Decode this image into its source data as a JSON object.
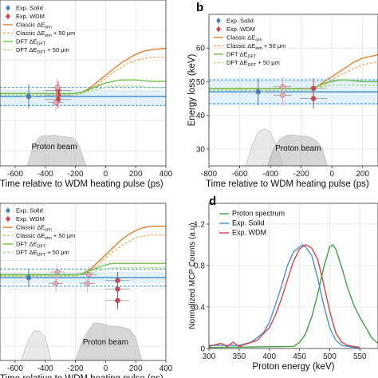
{
  "chart_data": [
    {
      "type": "line",
      "panel_label": "",
      "xlabel": "Time relative to WDM heating pulse (ps)",
      "ylabel": "",
      "xlim": [
        -700,
        400
      ],
      "ylim": [
        25,
        80
      ],
      "xticks": [
        -600,
        -400,
        -200,
        0,
        200,
        400
      ],
      "yticks": [],
      "grid": true,
      "legend_position": "top-left",
      "legend": [
        "Exp. Solid",
        "Exp. WDM",
        "Classic ΔE_sim",
        "Classic ΔE_sim + 50 μm",
        "DFT ΔE_DFT",
        "DFT ΔE_DFT + 50 μm"
      ],
      "annotation": "Proton beam",
      "series": [
        {
          "kind": "band",
          "color": "#bfe0f5",
          "y": [
            45,
            50
          ]
        },
        {
          "kind": "hline",
          "color": "#2a7fc4",
          "y": 48
        },
        {
          "kind": "hline-dashed",
          "color": "#4ca8e6",
          "y": 45
        },
        {
          "kind": "hline-dashed",
          "color": "#4ca8e6",
          "y": 51
        },
        {
          "kind": "curve",
          "color": "#e07f2a",
          "x": [
            -700,
            -200,
            -150,
            -100,
            -50,
            0,
            50,
            100,
            150,
            200,
            250,
            300,
            400
          ],
          "y": [
            49,
            49,
            49.5,
            51,
            53,
            55,
            57,
            59,
            60.5,
            62,
            63,
            63.5,
            64
          ]
        },
        {
          "kind": "curve-dashed",
          "color": "#f2ad6a",
          "x": [
            -700,
            -200,
            -150,
            -100,
            -50,
            0,
            50,
            100,
            150,
            200,
            250,
            300,
            400
          ],
          "y": [
            48.5,
            48.5,
            49,
            50.5,
            52,
            54,
            56,
            57.5,
            59,
            60,
            60.5,
            61,
            61
          ]
        },
        {
          "kind": "curve",
          "color": "#6cc04a",
          "x": [
            -700,
            -200,
            -150,
            -100,
            -50,
            0,
            50,
            100,
            200,
            300,
            400
          ],
          "y": [
            49,
            49,
            49.5,
            50.5,
            51.5,
            52.5,
            53,
            53.5,
            53.5,
            53,
            53
          ]
        },
        {
          "kind": "curve-dashed",
          "color": "#a6dc8a",
          "x": [
            -700,
            -200,
            -150,
            -100,
            -50,
            0,
            50,
            100,
            200,
            300,
            400
          ],
          "y": [
            48.5,
            48.5,
            49,
            50,
            50.5,
            51,
            51.5,
            51.5,
            51.5,
            51,
            51
          ]
        },
        {
          "kind": "points",
          "name": "Exp. Solid",
          "color": "#3f7fc4",
          "x": [
            -510
          ],
          "y": [
            48
          ],
          "xerr": [
            45
          ],
          "yerr": [
            4
          ]
        },
        {
          "kind": "points",
          "name": "Exp. WDM",
          "color": "#d8404a",
          "x": [
            -315,
            -315,
            -315
          ],
          "y": [
            47,
            48.5,
            50
          ],
          "xerr": [
            90,
            90,
            90
          ],
          "yerr": [
            3,
            3,
            3
          ]
        },
        {
          "kind": "points",
          "name": "Exp. WDM (light)",
          "color": "#f0a8ae",
          "x": [
            -330,
            -320
          ],
          "y": [
            46,
            51
          ],
          "xerr": [
            50,
            50
          ],
          "yerr": [
            3,
            3
          ]
        },
        {
          "kind": "profile",
          "color": "#b8b8b8",
          "x": [
            -520,
            -480,
            -440,
            -420,
            -380,
            -340,
            -300,
            -260,
            -220,
            -190,
            -170,
            -150,
            -130
          ],
          "y": [
            25,
            31.5,
            34.5,
            35,
            35,
            35.2,
            34.8,
            34.6,
            34.3,
            33,
            31,
            28,
            25
          ]
        }
      ]
    },
    {
      "type": "line",
      "panel_label": "b",
      "xlabel": "Time relative to WDM heating pulse (ps)",
      "ylabel": "Energy loss (keV)",
      "xlim": [
        -800,
        300
      ],
      "ylim": [
        25,
        70
      ],
      "xticks": [
        -800,
        -600,
        -400,
        -200,
        0,
        200
      ],
      "yticks": [
        30,
        40,
        50,
        60
      ],
      "grid": true,
      "legend_position": "top-left",
      "legend": [
        "Exp. Solid",
        "Exp. WDM",
        "Classic ΔE_sim",
        "Classic ΔE_sim + 50 μm",
        "DFT ΔE_DFT",
        "DFT ΔE_DFT + 50 μm"
      ],
      "annotation": "Proton beam",
      "series": [
        {
          "kind": "band",
          "color": "#bfe0f5",
          "y": [
            43,
            51
          ]
        },
        {
          "kind": "hline",
          "color": "#2a7fc4",
          "y": 47
        },
        {
          "kind": "hline-dashed",
          "color": "#4ca8e6",
          "y": 43.5
        },
        {
          "kind": "hline-dashed",
          "color": "#4ca8e6",
          "y": 50.5
        },
        {
          "kind": "curve",
          "color": "#e07f2a",
          "x": [
            -800,
            -150,
            -100,
            -50,
            0,
            50,
            100,
            150,
            200,
            250,
            300
          ],
          "y": [
            48,
            48,
            48.5,
            50,
            51.5,
            53,
            54.5,
            56,
            57,
            57.5,
            58
          ]
        },
        {
          "kind": "curve-dashed",
          "color": "#f2ad6a",
          "x": [
            -800,
            -150,
            -100,
            -50,
            0,
            50,
            100,
            150,
            200,
            250,
            300
          ],
          "y": [
            47.5,
            47.5,
            48,
            49,
            50.5,
            52,
            53,
            54,
            55,
            55.5,
            56
          ]
        },
        {
          "kind": "curve",
          "color": "#6cc04a",
          "x": [
            -800,
            -150,
            -100,
            -50,
            0,
            50,
            100,
            200,
            300
          ],
          "y": [
            48,
            48,
            48.5,
            49.5,
            50,
            50.5,
            50.5,
            50,
            50
          ]
        },
        {
          "kind": "curve-dashed",
          "color": "#a6dc8a",
          "x": [
            -800,
            -150,
            -100,
            -50,
            0,
            50,
            100,
            200,
            300
          ],
          "y": [
            47.5,
            47.5,
            48,
            48.5,
            49,
            49,
            49,
            49,
            49
          ]
        },
        {
          "kind": "points",
          "name": "Exp. Solid",
          "color": "#3f7fc4",
          "x": [
            -480
          ],
          "y": [
            47
          ],
          "xerr": [
            45
          ],
          "yerr": [
            4
          ]
        },
        {
          "kind": "points",
          "name": "Exp. WDM",
          "color": "#d8404a",
          "x": [
            -120,
            -120
          ],
          "y": [
            45,
            48
          ],
          "xerr": [
            90,
            90
          ],
          "yerr": [
            3,
            3
          ]
        },
        {
          "kind": "points",
          "name": "Exp. WDM (light)",
          "color": "#f0a8ae",
          "x": [
            -320,
            -320
          ],
          "y": [
            46,
            48.5
          ],
          "xerr": [
            60,
            60
          ],
          "yerr": [
            3,
            3
          ]
        },
        {
          "kind": "profile",
          "color": "#d8d8d8",
          "x": [
            -560,
            -520,
            -480,
            -440,
            -400,
            -360,
            -320
          ],
          "y": [
            25,
            31,
            35,
            36,
            35,
            31,
            25
          ]
        },
        {
          "kind": "profile",
          "color": "#b8b8b8",
          "x": [
            -420,
            -380,
            -340,
            -300,
            -260,
            -220,
            -180,
            -140,
            -100,
            -60,
            -30
          ],
          "y": [
            25,
            30,
            33,
            34,
            34.2,
            34,
            33.8,
            33.5,
            32.5,
            30,
            25
          ]
        }
      ]
    },
    {
      "type": "line",
      "panel_label": "",
      "xlabel": "Time relative to WDM heating pulse (ps)",
      "ylabel": "",
      "xlim": [
        -700,
        400
      ],
      "ylim": [
        25,
        80
      ],
      "xticks": [
        -600,
        -400,
        -200,
        0,
        200,
        400
      ],
      "yticks": [],
      "grid": true,
      "legend_position": "top-left",
      "legend": [
        "Exp. Solid",
        "Exp. WDM",
        "Classic ΔE_sim",
        "Classic ΔE_sim + 50 μm",
        "DFT ΔE_DFT",
        "DFT ΔE_DFT + 50 μm"
      ],
      "annotation": "Proton beam",
      "series": [
        {
          "kind": "band",
          "color": "#bfe0f5",
          "y": [
            52,
            56
          ]
        },
        {
          "kind": "hline",
          "color": "#2a7fc4",
          "y": 54
        },
        {
          "kind": "hline-dashed",
          "color": "#4ca8e6",
          "y": 51
        },
        {
          "kind": "hline-dashed",
          "color": "#4ca8e6",
          "y": 57
        },
        {
          "kind": "curve",
          "color": "#e07f2a",
          "x": [
            -700,
            -200,
            -150,
            -100,
            -50,
            0,
            50,
            100,
            150,
            200,
            250,
            300,
            400
          ],
          "y": [
            55,
            55,
            55.5,
            57,
            59.5,
            62,
            64.5,
            67,
            69,
            70.5,
            71.5,
            72,
            72
          ]
        },
        {
          "kind": "curve-dashed",
          "color": "#f2ad6a",
          "x": [
            -700,
            -200,
            -150,
            -100,
            -50,
            0,
            50,
            100,
            150,
            200,
            250,
            300,
            400
          ],
          "y": [
            54.5,
            54.5,
            55,
            56.5,
            58.5,
            61,
            63,
            65,
            66.5,
            68,
            68.5,
            69,
            69
          ]
        },
        {
          "kind": "curve",
          "color": "#6cc04a",
          "x": [
            -700,
            -200,
            -150,
            -100,
            -50,
            0,
            50,
            100,
            200,
            300,
            400
          ],
          "y": [
            55,
            55,
            55.5,
            56.5,
            57.5,
            58.5,
            59,
            59,
            59,
            59,
            59
          ]
        },
        {
          "kind": "curve-dashed",
          "color": "#a6dc8a",
          "x": [
            -700,
            -200,
            -150,
            -100,
            -50,
            0,
            50,
            100,
            200,
            300,
            400
          ],
          "y": [
            54.5,
            54.5,
            55,
            55.5,
            56.5,
            57,
            57.5,
            57.5,
            57.5,
            57.5,
            57.5
          ]
        },
        {
          "kind": "points",
          "name": "Exp. Solid",
          "color": "#3f7fc4",
          "x": [
            -510
          ],
          "y": [
            54
          ],
          "xerr": [
            40
          ],
          "yerr": [
            3
          ]
        },
        {
          "kind": "points",
          "name": "Exp. WDM",
          "color": "#d8404a",
          "x": [
            80,
            80,
            80
          ],
          "y": [
            46,
            50,
            53
          ],
          "xerr": [
            80,
            80,
            80
          ],
          "yerr": [
            3,
            3,
            3
          ]
        },
        {
          "kind": "points",
          "name": "Exp. WDM (light)",
          "color": "#f0a8ae",
          "x": [
            -330,
            -320,
            -120,
            -110
          ],
          "y": [
            52,
            56,
            52,
            55
          ],
          "xerr": [
            50,
            50,
            50,
            50
          ],
          "yerr": [
            3,
            3,
            3,
            3
          ]
        },
        {
          "kind": "profile",
          "color": "#d8d8d8",
          "x": [
            -560,
            -520,
            -480,
            -440,
            -400,
            -360
          ],
          "y": [
            25,
            31,
            35,
            35.5,
            33,
            25
          ]
        },
        {
          "kind": "profile",
          "color": "#b8b8b8",
          "x": [
            -200,
            -160,
            -120,
            -80,
            -40,
            0,
            40,
            80,
            120,
            160,
            200,
            240
          ],
          "y": [
            25,
            31,
            35,
            38,
            38,
            37.5,
            37,
            37,
            36.5,
            36,
            33,
            25
          ]
        }
      ]
    },
    {
      "type": "line",
      "panel_label": "d",
      "xlabel": "Proton energy (keV)",
      "ylabel": "Normalized MCP Counts (a.u)",
      "xlim": [
        300,
        580
      ],
      "ylim": [
        0,
        1.4
      ],
      "xticks": [
        300,
        350,
        400,
        450,
        500,
        550
      ],
      "yticks": [
        0,
        0.4,
        0.8,
        1.2
      ],
      "ytick_labels": [
        "0",
        "0.4",
        "0.8",
        "1.2"
      ],
      "grid": true,
      "legend_position": "top-left",
      "legend": [
        "Proton spectrum",
        "Exp. Solid",
        "Exp. WDM"
      ],
      "series": [
        {
          "name": "Proton spectrum",
          "color": "#3fa33f",
          "x": [
            300,
            440,
            450,
            460,
            470,
            480,
            490,
            500,
            505,
            510,
            520,
            530,
            540,
            550,
            560,
            570,
            580
          ],
          "y": [
            0.01,
            0.02,
            0.06,
            0.14,
            0.3,
            0.52,
            0.78,
            0.98,
            1.0,
            0.96,
            0.78,
            0.58,
            0.42,
            0.3,
            0.2,
            0.1,
            0.05
          ]
        },
        {
          "name": "Exp. Solid",
          "color": "#4a90d9",
          "x": [
            300,
            350,
            370,
            390,
            400,
            410,
            420,
            430,
            440,
            450,
            455,
            460,
            470,
            480,
            490,
            500,
            510,
            520,
            530,
            540,
            550
          ],
          "y": [
            0.03,
            0.03,
            0.06,
            0.15,
            0.25,
            0.42,
            0.6,
            0.8,
            0.93,
            0.98,
            1.0,
            0.98,
            0.9,
            0.68,
            0.42,
            0.2,
            0.08,
            0.03,
            0.02,
            0.01,
            0.01
          ]
        },
        {
          "name": "Exp. WDM",
          "color": "#d64545",
          "x": [
            300,
            320,
            330,
            340,
            350,
            360,
            380,
            400,
            410,
            420,
            430,
            440,
            450,
            460,
            470,
            480,
            490,
            500,
            510,
            520,
            530,
            540,
            550
          ],
          "y": [
            0.02,
            0.05,
            0.02,
            0.06,
            0.02,
            0.04,
            0.08,
            0.2,
            0.32,
            0.48,
            0.66,
            0.84,
            0.96,
            1.0,
            0.97,
            0.86,
            0.62,
            0.36,
            0.15,
            0.06,
            0.03,
            0.02,
            0.01
          ]
        }
      ]
    }
  ]
}
